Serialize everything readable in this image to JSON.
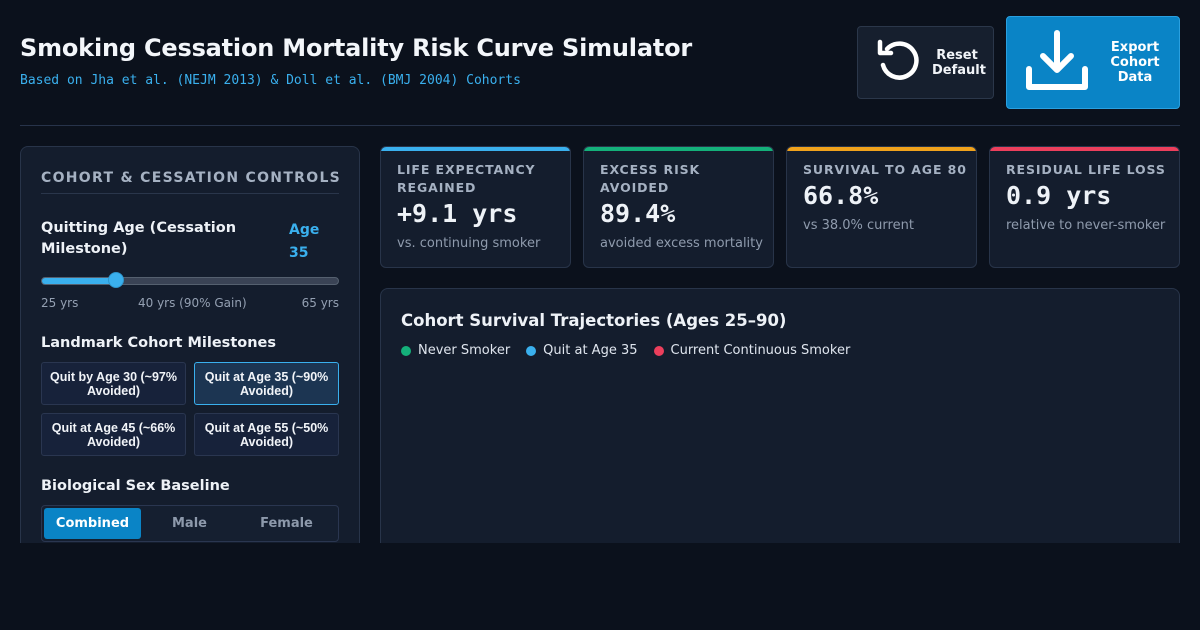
{
  "header": {
    "title": "Smoking Cessation Mortality Risk Curve Simulator",
    "subtitle": "Based on Jha et al. (NEJM 2013) & Doll et al. (BMJ 2004) Cohorts",
    "reset_label": "Reset\nDefault",
    "export_label": "Export\nCohort\nData"
  },
  "controls": {
    "title": "COHORT & CESSATION CONTROLS",
    "quitting_age_label": "Quitting Age (Cessation Milestone)",
    "quitting_age_value": "Age 35",
    "slider": {
      "value": 35,
      "min": 25,
      "max": 65,
      "fraction": 0.25
    },
    "ticks": [
      "25 yrs",
      "40 yrs (90% Gain)",
      "65 yrs"
    ],
    "milestones_label": "Landmark Cohort Milestones",
    "milestones": [
      {
        "label": "Quit by Age 30 (~97% Avoided)",
        "active": false
      },
      {
        "label": "Quit at Age 35 (~90% Avoided)",
        "active": true
      },
      {
        "label": "Quit at Age 45 (~66% Avoided)",
        "active": false
      },
      {
        "label": "Quit at Age 55 (~50% Avoided)",
        "active": false
      }
    ],
    "sex_label": "Biological Sex Baseline",
    "sex_options": [
      "Combined",
      "Male",
      "Female"
    ],
    "sex_selected": "Combined"
  },
  "cards": [
    {
      "title": "LIFE EXPECTANCY REGAINED",
      "value": "+9.1 yrs",
      "note": "vs. continuing smoker",
      "color": "#3ab0ee"
    },
    {
      "title": "EXCESS RISK AVOIDED",
      "value": "89.4%",
      "note": "avoided excess mortality",
      "color": "#14b07a"
    },
    {
      "title": "SURVIVAL TO AGE 80",
      "value": "66.8%",
      "note": "vs 38.0% current",
      "color": "#f0a21c"
    },
    {
      "title": "RESIDUAL LIFE LOSS",
      "value": "0.9 yrs",
      "note": "relative to never-smoker",
      "color": "#ec3f5c"
    }
  ],
  "chart": {
    "title": "Cohort Survival Trajectories (Ages 25–90)",
    "legend": [
      {
        "label": "Never Smoker",
        "color": "#14b07a"
      },
      {
        "label": "Quit at Age 35",
        "color": "#3ab0ee"
      },
      {
        "label": "Current Continuous Smoker",
        "color": "#ec3f5c"
      }
    ]
  }
}
